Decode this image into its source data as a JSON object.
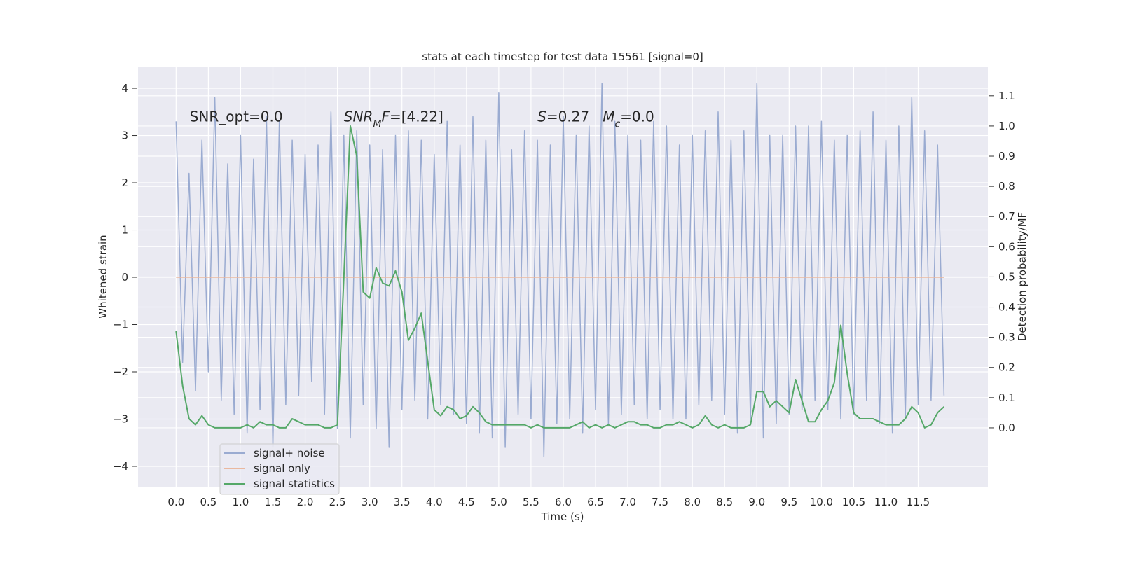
{
  "chart_data": {
    "type": "line",
    "title": "stats at each timestep for test data 15561 [signal=0]",
    "xlabel": "Time (s)",
    "ylabel": "Whitened strain",
    "y2label": "Detection probability/MF",
    "x": [
      0.0,
      0.1,
      0.2,
      0.3,
      0.4,
      0.5,
      0.6,
      0.7,
      0.8,
      0.9,
      1.0,
      1.1,
      1.2,
      1.3,
      1.4,
      1.5,
      1.6,
      1.7,
      1.8,
      1.9,
      2.0,
      2.1,
      2.2,
      2.3,
      2.4,
      2.5,
      2.6,
      2.7,
      2.8,
      2.9,
      3.0,
      3.1,
      3.2,
      3.3,
      3.4,
      3.5,
      3.6,
      3.7,
      3.8,
      3.9,
      4.0,
      4.1,
      4.2,
      4.3,
      4.4,
      4.5,
      4.6,
      4.7,
      4.8,
      4.9,
      5.0,
      5.1,
      5.2,
      5.3,
      5.4,
      5.5,
      5.6,
      5.7,
      5.8,
      5.9,
      6.0,
      6.1,
      6.2,
      6.3,
      6.4,
      6.5,
      6.6,
      6.7,
      6.8,
      6.9,
      7.0,
      7.1,
      7.2,
      7.3,
      7.4,
      7.5,
      7.6,
      7.7,
      7.8,
      7.9,
      8.0,
      8.1,
      8.2,
      8.3,
      8.4,
      8.5,
      8.6,
      8.7,
      8.8,
      8.9,
      9.0,
      9.1,
      9.2,
      9.3,
      9.4,
      9.5,
      9.6,
      9.7,
      9.8,
      9.9,
      10.0,
      10.1,
      10.2,
      10.3,
      10.4,
      10.5,
      10.6,
      10.7,
      10.8,
      10.9,
      11.0,
      11.1,
      11.2,
      11.3,
      11.4,
      11.5,
      11.6,
      11.7,
      11.8,
      11.9
    ],
    "series": [
      {
        "name": "signal+ noise",
        "color": "#9aabd1",
        "values": [
          3.3,
          -1.8,
          2.2,
          -2.4,
          2.9,
          -2.0,
          3.8,
          -2.6,
          2.4,
          -2.9,
          3.0,
          -3.3,
          2.5,
          -2.8,
          3.4,
          -3.6,
          3.3,
          -2.7,
          2.9,
          -2.5,
          2.6,
          -2.2,
          2.8,
          -2.9,
          3.5,
          -3.2,
          3.0,
          -3.4,
          3.1,
          -2.7,
          2.8,
          -3.2,
          2.7,
          -3.6,
          3.0,
          -2.8,
          3.1,
          -2.6,
          2.9,
          -3.0,
          2.6,
          -2.7,
          3.3,
          -2.9,
          2.8,
          -3.1,
          3.4,
          -3.3,
          2.9,
          -3.4,
          3.9,
          -3.6,
          2.7,
          -2.9,
          3.1,
          -3.0,
          2.9,
          -3.8,
          2.8,
          -3.1,
          3.4,
          -3.0,
          3.0,
          -3.3,
          3.2,
          -2.8,
          4.1,
          -3.1,
          3.3,
          -2.9,
          3.0,
          -2.7,
          2.9,
          -3.0,
          3.3,
          -2.8,
          3.2,
          -3.0,
          2.8,
          -3.0,
          3.0,
          -2.7,
          3.1,
          -2.6,
          3.5,
          -2.9,
          2.9,
          -3.3,
          3.1,
          -3.0,
          4.1,
          -3.4,
          3.0,
          -3.1,
          3.0,
          -2.9,
          3.2,
          -2.8,
          3.2,
          -2.6,
          3.3,
          -2.8,
          2.9,
          -3.0,
          3.0,
          -2.9,
          3.1,
          -2.6,
          3.5,
          -3.1,
          2.9,
          -3.3,
          3.2,
          -3.0,
          3.8,
          -2.7,
          3.1,
          -2.6,
          2.8,
          -2.5
        ]
      },
      {
        "name": "signal only",
        "color": "#eab89f",
        "x": [
          0.0,
          11.9
        ],
        "values": [
          0,
          0
        ]
      },
      {
        "name": "signal statistics",
        "color": "#55a868",
        "axis": "y2",
        "values": [
          0.32,
          0.14,
          0.03,
          0.01,
          0.04,
          0.01,
          0.0,
          0.0,
          0.0,
          0.0,
          0.0,
          0.01,
          0.0,
          0.02,
          0.01,
          0.01,
          0.0,
          0.0,
          0.03,
          0.02,
          0.01,
          0.01,
          0.01,
          0.0,
          0.0,
          0.01,
          0.5,
          1.0,
          0.9,
          0.45,
          0.43,
          0.53,
          0.48,
          0.47,
          0.52,
          0.45,
          0.29,
          0.33,
          0.38,
          0.22,
          0.06,
          0.04,
          0.07,
          0.06,
          0.03,
          0.04,
          0.07,
          0.05,
          0.02,
          0.01,
          0.01,
          0.01,
          0.01,
          0.01,
          0.01,
          0.0,
          0.01,
          0.0,
          0.0,
          0.0,
          0.0,
          0.0,
          0.01,
          0.02,
          0.0,
          0.01,
          0.0,
          0.01,
          0.0,
          0.01,
          0.02,
          0.02,
          0.01,
          0.01,
          0.0,
          0.0,
          0.01,
          0.01,
          0.02,
          0.01,
          0.0,
          0.01,
          0.04,
          0.01,
          0.0,
          0.01,
          0.0,
          0.0,
          0.0,
          0.01,
          0.12,
          0.12,
          0.07,
          0.09,
          0.07,
          0.05,
          0.16,
          0.09,
          0.02,
          0.02,
          0.06,
          0.09,
          0.15,
          0.34,
          0.18,
          0.05,
          0.03,
          0.03,
          0.03,
          0.02,
          0.01,
          0.01,
          0.01,
          0.03,
          0.07,
          0.05,
          0.0,
          0.01,
          0.05,
          0.07
        ]
      }
    ],
    "xlim": [
      -0.59,
      12.58
    ],
    "ylim": [
      -4.43,
      4.46
    ],
    "y2lim": [
      -0.195,
      1.197
    ],
    "xticks": [
      {
        "value": 0,
        "label": "0.0"
      },
      0.5,
      {
        "value": 1,
        "label": "1.0"
      },
      1.5,
      {
        "value": 2,
        "label": "2.0"
      },
      2.5,
      {
        "value": 3,
        "label": "3.0"
      },
      3.5,
      {
        "value": 4,
        "label": "4.0"
      },
      4.5,
      {
        "value": 5,
        "label": "5.0"
      },
      5.5,
      {
        "value": 6,
        "label": "6.0"
      },
      6.5,
      {
        "value": 7,
        "label": "7.0"
      },
      7.5,
      {
        "value": 8,
        "label": "8.0"
      },
      8.5,
      {
        "value": 9,
        "label": "9.0"
      },
      9.5,
      {
        "value": 10,
        "label": "10.0"
      },
      10.5,
      {
        "value": 11,
        "label": "11.0"
      },
      11.5
    ],
    "yticks": [
      {
        "value": -4,
        "label": "−4"
      },
      {
        "value": -3,
        "label": "−3"
      },
      {
        "value": -2,
        "label": "−2"
      },
      {
        "value": -1,
        "label": "−1"
      },
      0,
      1,
      2,
      3,
      4
    ],
    "y2ticks": [
      {
        "value": 0,
        "label": "0.0"
      },
      0.1,
      0.2,
      0.3,
      0.4,
      0.5,
      0.6,
      0.7,
      0.8,
      0.9,
      {
        "value": 1,
        "label": "1.0"
      },
      1.1
    ],
    "grid": true,
    "legend": "lower left",
    "annotations": [
      {
        "x": 0.21,
        "y": 3.3,
        "segments": [
          {
            "text": "SNR_opt=0.0",
            "style": "normal"
          }
        ]
      },
      {
        "x": 2.6,
        "y": 3.3,
        "segments": [
          {
            "text": "SNR",
            "style": "italic"
          },
          {
            "text": "M",
            "style": "sub"
          },
          {
            "text": "F",
            "style": "italic"
          },
          {
            "text": "=[4.22]",
            "style": "normal"
          }
        ]
      },
      {
        "x": 5.6,
        "y": 3.3,
        "segments": [
          {
            "text": "S",
            "style": "italic"
          },
          {
            "text": "=0.27   ",
            "style": "normal"
          },
          {
            "text": "M",
            "style": "italic"
          },
          {
            "text": "c",
            "style": "sub"
          },
          {
            "text": "=0.0",
            "style": "normal"
          }
        ]
      }
    ]
  }
}
